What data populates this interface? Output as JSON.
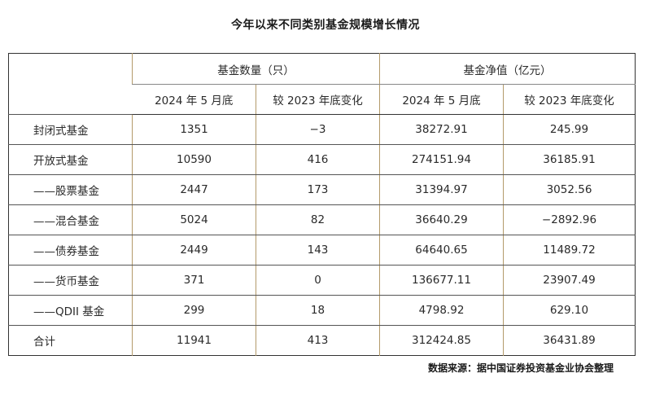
{
  "title": "今年以来不同类别基金规模增长情况",
  "table": {
    "group_headers": [
      "基金数量（只）",
      "基金净值（亿元）"
    ],
    "sub_headers": [
      "2024 年 5 月底",
      "较 2023 年底变化",
      "2024 年 5 月底",
      "较 2023 年底变化"
    ],
    "rows": [
      {
        "category": "封闭式基金",
        "count_may": "1351",
        "count_change": "−3",
        "nav_may": "38272.91",
        "nav_change": "245.99"
      },
      {
        "category": "开放式基金",
        "count_may": "10590",
        "count_change": "416",
        "nav_may": "274151.94",
        "nav_change": "36185.91"
      },
      {
        "category": "——股票基金",
        "count_may": "2447",
        "count_change": "173",
        "nav_may": "31394.97",
        "nav_change": "3052.56"
      },
      {
        "category": "——混合基金",
        "count_may": "5024",
        "count_change": "82",
        "nav_may": "36640.29",
        "nav_change": "−2892.96"
      },
      {
        "category": "——债券基金",
        "count_may": "2449",
        "count_change": "143",
        "nav_may": "64640.65",
        "nav_change": "11489.72"
      },
      {
        "category": "——货币基金",
        "count_may": "371",
        "count_change": "0",
        "nav_may": "136677.11",
        "nav_change": "23907.49"
      },
      {
        "category": "——QDII 基金",
        "count_may": "299",
        "count_change": "18",
        "nav_may": "4798.92",
        "nav_change": "629.10"
      },
      {
        "category": "合计",
        "count_may": "11941",
        "count_change": "413",
        "nav_may": "312424.85",
        "nav_change": "36431.89"
      }
    ]
  },
  "source": "数据来源：据中国证券投资基金业协会整理"
}
